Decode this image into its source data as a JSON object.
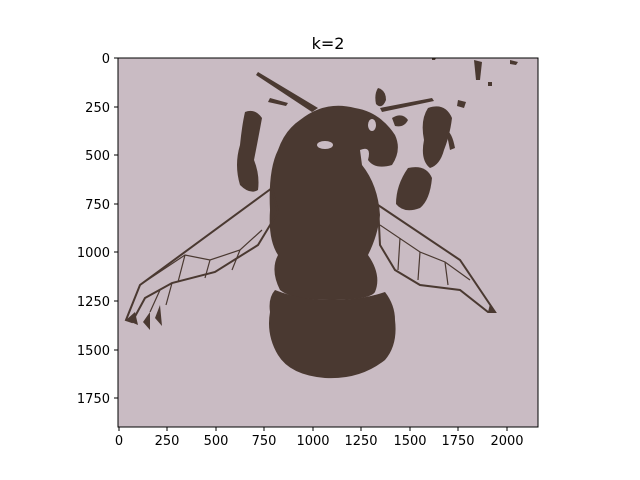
{
  "figure": {
    "title": "k=2",
    "background_color": "#ffffff"
  },
  "image": {
    "description_colors": {
      "background_cluster": "#c9bbc3",
      "foreground_cluster": "#4a3931"
    },
    "x_ticks": [
      "0",
      "250",
      "500",
      "750",
      "1000",
      "1250",
      "1500",
      "1750",
      "2000"
    ],
    "y_ticks": [
      "0",
      "250",
      "500",
      "750",
      "1000",
      "1250",
      "1500",
      "1750"
    ],
    "x_range": [
      0,
      2160
    ],
    "y_range": [
      1890,
      0
    ]
  }
}
